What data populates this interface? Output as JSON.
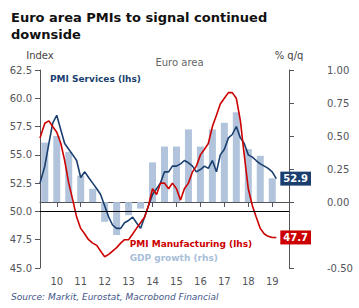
{
  "chart_data": {
    "type": "line",
    "title": "Euro area PMIs to signal continued\ndownside",
    "subtitle": "Euro area",
    "source": "Source: Markit, Eurostat, Macrobond Financial",
    "ylabel": "Index",
    "y2label": "% q/q",
    "xlim": [
      9.3,
      19.7
    ],
    "xticks": [
      10,
      11,
      12,
      13,
      14,
      15,
      16,
      17,
      18,
      19
    ],
    "ylim": [
      45.0,
      62.5
    ],
    "yticks": [
      {
        "value": 45.0,
        "label": "45.0"
      },
      {
        "value": 47.5,
        "label": "47.5"
      },
      {
        "value": 50.0,
        "label": "50.0"
      },
      {
        "value": 52.5,
        "label": "52.5"
      },
      {
        "value": 55.0,
        "label": "55.0"
      },
      {
        "value": 57.5,
        "label": "57.5"
      },
      {
        "value": 60.0,
        "label": "60.0"
      },
      {
        "value": 62.5,
        "label": "62.5"
      }
    ],
    "y2lim": [
      -0.5,
      1.0
    ],
    "y2ticks": [
      {
        "value": -0.5,
        "label": "-0.50"
      },
      {
        "value": 0.0,
        "label": "0.00"
      },
      {
        "value": 0.25,
        "label": "0.25"
      },
      {
        "value": 0.5,
        "label": "0.50"
      },
      {
        "value": 0.75,
        "label": "0.75"
      },
      {
        "value": 1.0,
        "label": "1.00"
      }
    ],
    "grid": false,
    "reference_y": 50.0,
    "series": [
      {
        "name": "GDP growth (rhs)",
        "type": "bar",
        "axis": "y2",
        "color": "#a8bed8",
        "x": [
          9.5,
          10.0,
          10.5,
          11.0,
          11.5,
          12.0,
          12.5,
          13.0,
          13.5,
          14.0,
          14.5,
          15.0,
          15.5,
          16.0,
          16.5,
          17.0,
          17.5,
          18.0,
          18.5,
          19.0
        ],
        "values": [
          0.45,
          0.5,
          0.38,
          0.2,
          0.1,
          -0.15,
          -0.25,
          -0.1,
          -0.05,
          0.3,
          0.42,
          0.42,
          0.55,
          0.42,
          0.55,
          0.6,
          0.68,
          0.4,
          0.35,
          0.18
        ]
      },
      {
        "name": "PMI Services (lhs)",
        "type": "line",
        "color": "#1a3f6f",
        "end_label": "52.9",
        "x": [
          9.3,
          9.5,
          9.67,
          9.83,
          10.0,
          10.17,
          10.33,
          10.5,
          10.67,
          10.83,
          11.0,
          11.17,
          11.33,
          11.5,
          11.67,
          11.83,
          12.0,
          12.17,
          12.33,
          12.5,
          12.67,
          12.83,
          13.0,
          13.17,
          13.33,
          13.5,
          13.67,
          13.83,
          14.0,
          14.17,
          14.33,
          14.5,
          14.67,
          14.83,
          15.0,
          15.17,
          15.33,
          15.5,
          15.67,
          15.83,
          16.0,
          16.17,
          16.33,
          16.5,
          16.67,
          16.83,
          17.0,
          17.17,
          17.33,
          17.5,
          17.67,
          17.83,
          18.0,
          18.17,
          18.33,
          18.5,
          18.67,
          18.83,
          19.0,
          19.17
        ],
        "values": [
          52.5,
          54.0,
          56.0,
          57.8,
          58.5,
          57.2,
          56.0,
          55.5,
          55.0,
          54.5,
          53.0,
          53.5,
          53.0,
          52.5,
          52.0,
          51.5,
          50.5,
          49.5,
          48.8,
          48.5,
          48.5,
          49.0,
          49.2,
          49.5,
          49.0,
          48.5,
          49.5,
          50.5,
          51.5,
          52.0,
          52.5,
          53.5,
          53.5,
          54.0,
          54.0,
          54.2,
          54.5,
          54.3,
          54.0,
          53.5,
          53.7,
          54.0,
          53.8,
          54.5,
          53.5,
          55.0,
          55.5,
          56.5,
          56.8,
          57.5,
          56.5,
          56.0,
          55.0,
          54.8,
          54.5,
          54.2,
          54.0,
          53.8,
          53.5,
          52.9
        ]
      },
      {
        "name": "PMI Manufacturing (lhs)",
        "type": "line",
        "color": "#cc0000",
        "end_label": "47.7",
        "x": [
          9.3,
          9.5,
          9.67,
          9.83,
          10.0,
          10.17,
          10.33,
          10.5,
          10.67,
          10.83,
          11.0,
          11.17,
          11.33,
          11.5,
          11.67,
          11.83,
          12.0,
          12.17,
          12.33,
          12.5,
          12.67,
          12.83,
          13.0,
          13.17,
          13.33,
          13.5,
          13.67,
          13.83,
          14.0,
          14.17,
          14.33,
          14.5,
          14.67,
          14.83,
          15.0,
          15.17,
          15.33,
          15.5,
          15.67,
          15.83,
          16.0,
          16.17,
          16.33,
          16.5,
          16.67,
          16.83,
          17.0,
          17.17,
          17.33,
          17.5,
          17.67,
          17.83,
          18.0,
          18.17,
          18.33,
          18.5,
          18.67,
          18.83,
          19.0,
          19.17
        ],
        "values": [
          56.5,
          57.8,
          58.0,
          57.5,
          57.0,
          56.0,
          54.5,
          52.5,
          51.0,
          49.5,
          48.5,
          48.0,
          47.5,
          47.2,
          47.0,
          46.5,
          46.0,
          46.2,
          46.5,
          46.8,
          47.2,
          47.5,
          47.5,
          48.0,
          48.5,
          49.0,
          49.5,
          50.5,
          52.0,
          51.5,
          52.5,
          52.5,
          52.0,
          52.5,
          52.0,
          51.0,
          52.0,
          52.5,
          53.5,
          54.0,
          55.0,
          55.5,
          56.0,
          57.5,
          58.5,
          59.5,
          60.0,
          60.5,
          60.5,
          60.0,
          58.0,
          55.0,
          52.0,
          50.5,
          49.5,
          48.5,
          48.0,
          47.8,
          47.7,
          47.7
        ]
      }
    ]
  }
}
